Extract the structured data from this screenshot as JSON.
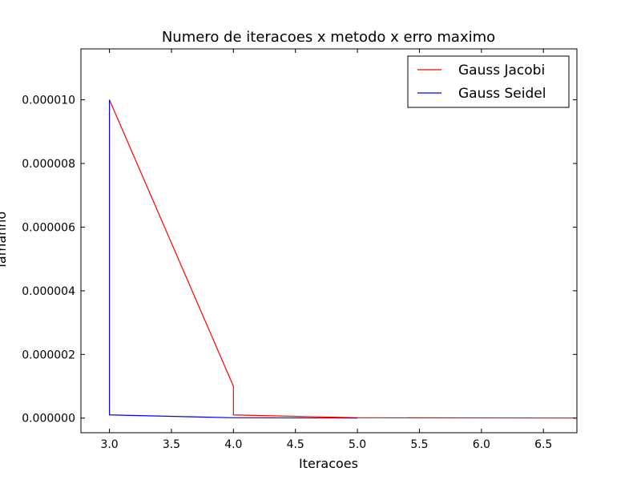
{
  "chart_data": {
    "type": "line",
    "title": "Numero de iteracoes x metodo x erro maximo",
    "xlabel": "Iteracoes",
    "ylabel": "Tamanho",
    "xlim": [
      2.77,
      6.77
    ],
    "ylim": [
      -4.6e-07,
      1.16e-05
    ],
    "xticks": [
      3.0,
      3.5,
      4.0,
      4.5,
      5.0,
      5.5,
      6.0,
      6.5
    ],
    "xtick_labels": [
      "3.0",
      "3.5",
      "4.0",
      "4.5",
      "5.0",
      "5.5",
      "6.0",
      "6.5"
    ],
    "yticks": [
      0,
      2e-06,
      4e-06,
      6e-06,
      8e-06,
      1e-05
    ],
    "ytick_labels": [
      "0.000000",
      "0.000002",
      "0.000004",
      "0.000006",
      "0.000008",
      "0.000010"
    ],
    "grid": false,
    "legend_position": "top-right",
    "series": [
      {
        "name": "Gauss Jacobi",
        "color": "#ff0000",
        "points": [
          [
            3.0,
            1e-05
          ],
          [
            4.0,
            1e-06
          ],
          [
            4.0,
            1e-07
          ],
          [
            5.0,
            1e-08
          ],
          [
            6.77,
            1e-09
          ]
        ]
      },
      {
        "name": "Gauss Seidel",
        "color": "#0000ff",
        "points": [
          [
            3.0,
            1e-05
          ],
          [
            3.0,
            1e-07
          ],
          [
            4.0,
            1e-08
          ],
          [
            5.0,
            1e-09
          ]
        ]
      }
    ]
  }
}
